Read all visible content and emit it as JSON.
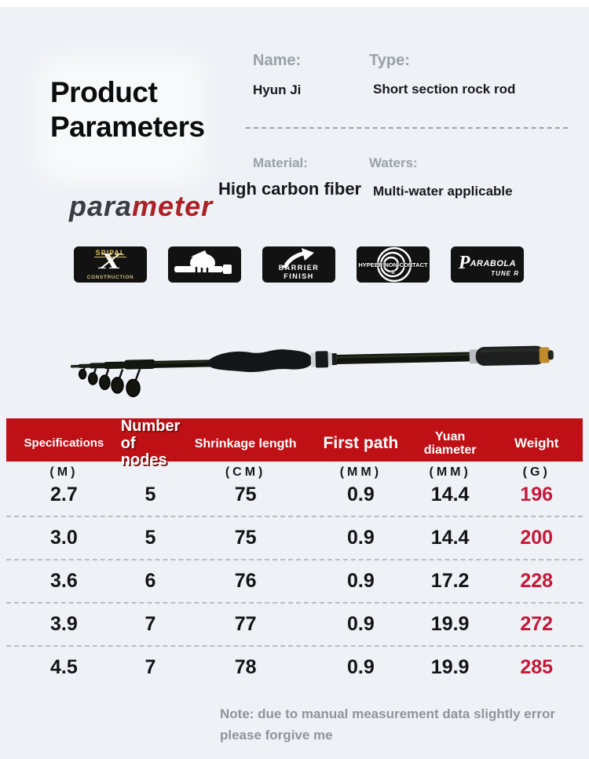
{
  "page": {
    "background": "#eef1f5",
    "accent_red": "#bf1015",
    "value_red": "#c5193a"
  },
  "header": {
    "title": "Product\nParameters",
    "fields": [
      {
        "label": "Name:",
        "value": "Hyun Ji"
      },
      {
        "label": "Type:",
        "value": "Short section rock rod"
      },
      {
        "label": "Material:",
        "value": "High carbon fiber"
      },
      {
        "label": "Waters:",
        "value": "Multi-water applicable"
      }
    ],
    "watermark_part1": "para",
    "watermark_part2": "meter"
  },
  "badges": [
    {
      "top": "SPIPAL",
      "glyph": "X",
      "bottom": "CONSTRUCTION"
    },
    {
      "icon": "hand-grip-icon"
    },
    {
      "lines": "BARRIER\nFINISH"
    },
    {
      "text": "HYPEER NON-CONTACT II"
    },
    {
      "initial": "P",
      "rest": "ARABOLA",
      "line2": "TUNE R"
    }
  ],
  "table": {
    "columns": [
      "Specifications",
      "Number of\nnodes",
      "Shrinkage length",
      "First path",
      "Yuan diameter",
      "Weight"
    ],
    "units": [
      "(M)",
      "",
      "(CM)",
      "(MM)",
      "(MM)",
      "(G)"
    ],
    "rows": [
      [
        "2.7",
        "5",
        "75",
        "0.9",
        "14.4",
        "196"
      ],
      [
        "3.0",
        "5",
        "75",
        "0.9",
        "14.4",
        "200"
      ],
      [
        "3.6",
        "6",
        "76",
        "0.9",
        "17.2",
        "228"
      ],
      [
        "3.9",
        "7",
        "77",
        "0.9",
        "19.9",
        "272"
      ],
      [
        "4.5",
        "7",
        "78",
        "0.9",
        "19.9",
        "285"
      ]
    ]
  },
  "note": {
    "line1": "Note: due to manual measurement data slightly error",
    "line2": "please forgive me"
  }
}
